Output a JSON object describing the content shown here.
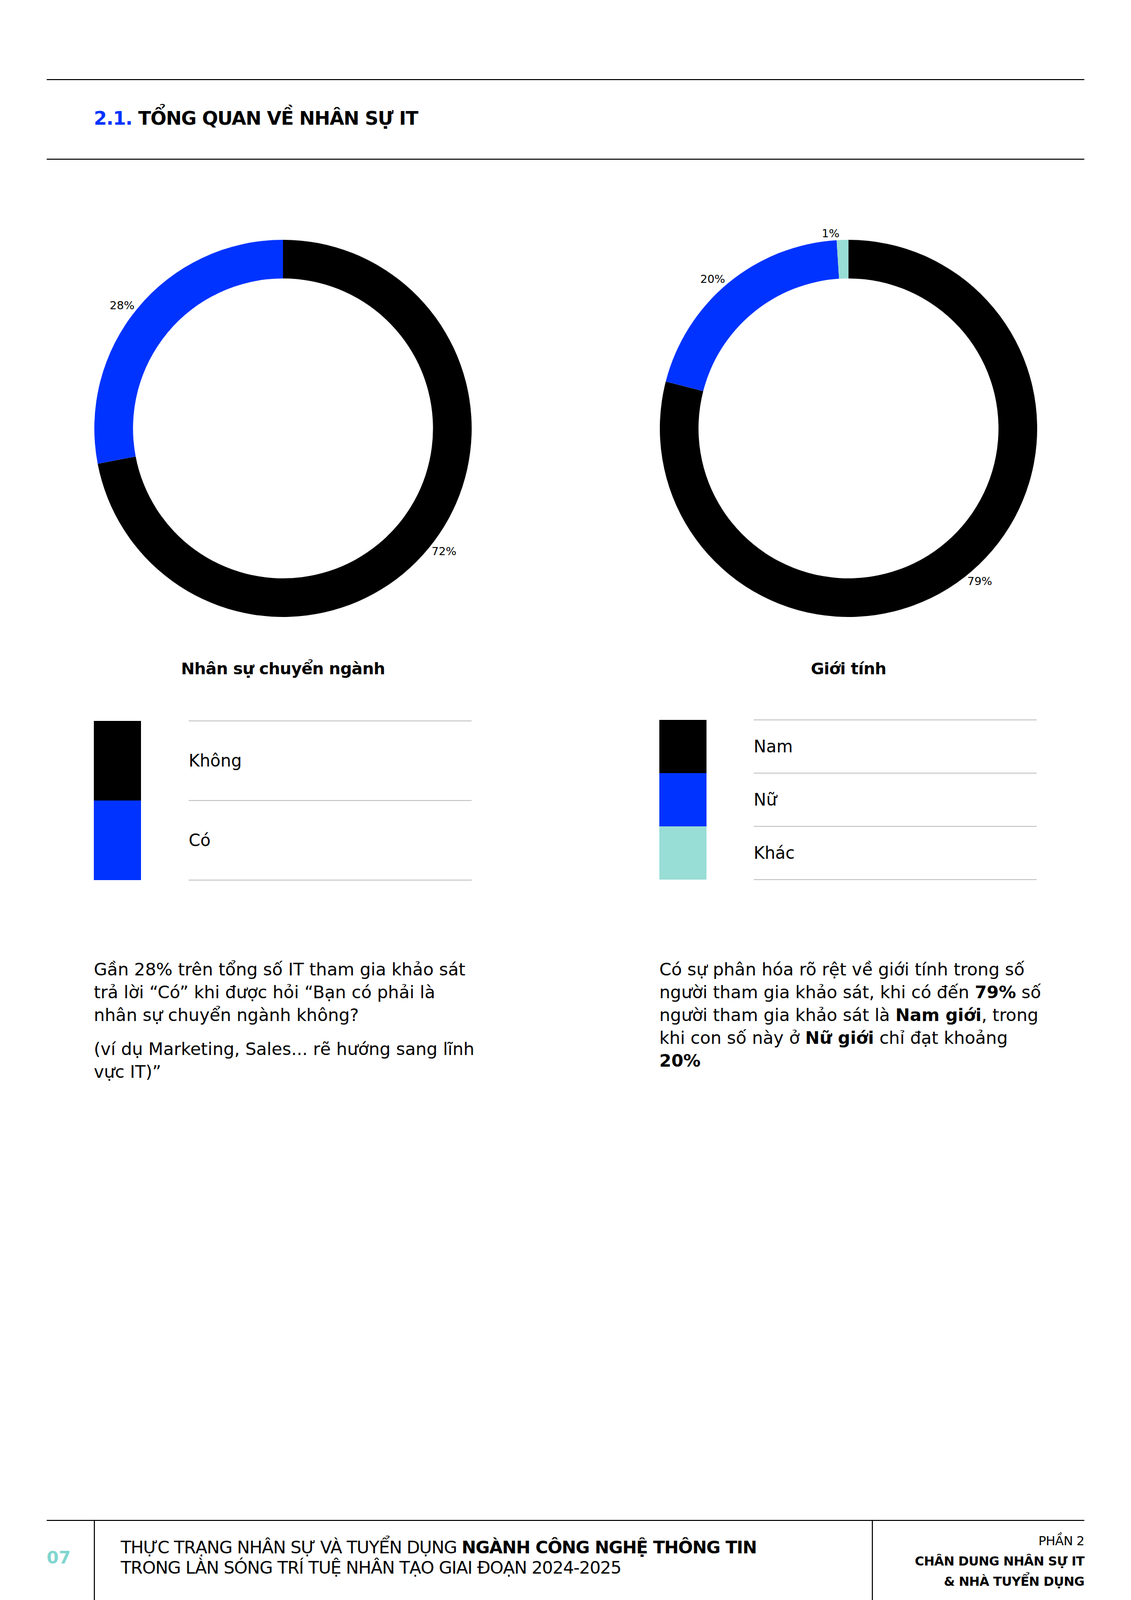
{
  "header": {
    "number": "2.1.",
    "title": "TỔNG QUAN VỀ NHÂN SỰ IT"
  },
  "chart_data": [
    {
      "type": "pie",
      "title": "Nhân sự chuyển ngành",
      "categories": [
        "Không",
        "Có"
      ],
      "values": [
        72,
        28
      ],
      "value_labels": [
        "72%",
        "28%"
      ],
      "colors": [
        "#000000",
        "#0033ff"
      ],
      "data_labels": true,
      "legend": "bottom"
    },
    {
      "type": "pie",
      "title": "Giới tính",
      "categories": [
        "Nam",
        "Nữ",
        "Khác"
      ],
      "values": [
        79,
        20,
        1
      ],
      "value_labels": [
        "79%",
        "20%",
        "1%"
      ],
      "colors": [
        "#000000",
        "#0033ff",
        "#99ddd7"
      ],
      "data_labels": true,
      "legend": "bottom"
    }
  ],
  "notes": [
    {
      "paragraphs": [
        [
          {
            "text": "Gần 28% trên tổng số IT tham gia khảo sát trả lời “Có” khi được hỏi “Bạn có phải là nhân sự chuyển ngành không?",
            "bold": false
          }
        ],
        [
          {
            "text": "(ví dụ Marketing, Sales... rẽ hướng sang lĩnh vực IT)”",
            "bold": false
          }
        ]
      ]
    },
    {
      "paragraphs": [
        [
          {
            "text": "Có sự phân hóa rõ rệt về giới tính trong số người tham gia khảo sát, khi có đến ",
            "bold": false
          },
          {
            "text": "79%",
            "bold": true
          },
          {
            "text": " số người tham gia khảo sát là ",
            "bold": false
          },
          {
            "text": "Nam giới",
            "bold": true
          },
          {
            "text": ", trong khi con số này ở ",
            "bold": false
          },
          {
            "text": "Nữ giới",
            "bold": true
          },
          {
            "text": " chỉ đạt khoảng ",
            "bold": false
          },
          {
            "text": "20%",
            "bold": true
          }
        ]
      ]
    }
  ],
  "footer": {
    "page": "07",
    "title_lines": [
      [
        {
          "text": "THỰC TRẠNG NHÂN SỰ VÀ TUYỂN DỤNG ",
          "bold": false
        },
        {
          "text": "NGÀNH CÔNG NGHỆ THÔNG TIN",
          "bold": true
        }
      ],
      [
        {
          "text": "TRONG LÀN SÓNG TRÍ TUỆ NHÂN TẠO GIAI ĐOẠN 2024-2025",
          "bold": false
        }
      ]
    ],
    "section_lines": [
      {
        "text": "PHẦN 2",
        "bold": false
      },
      {
        "text": "CHÂN DUNG NHÂN SỰ IT",
        "bold": true
      },
      {
        "text": "& NHÀ TUYỂN DỤNG",
        "bold": true
      }
    ]
  }
}
